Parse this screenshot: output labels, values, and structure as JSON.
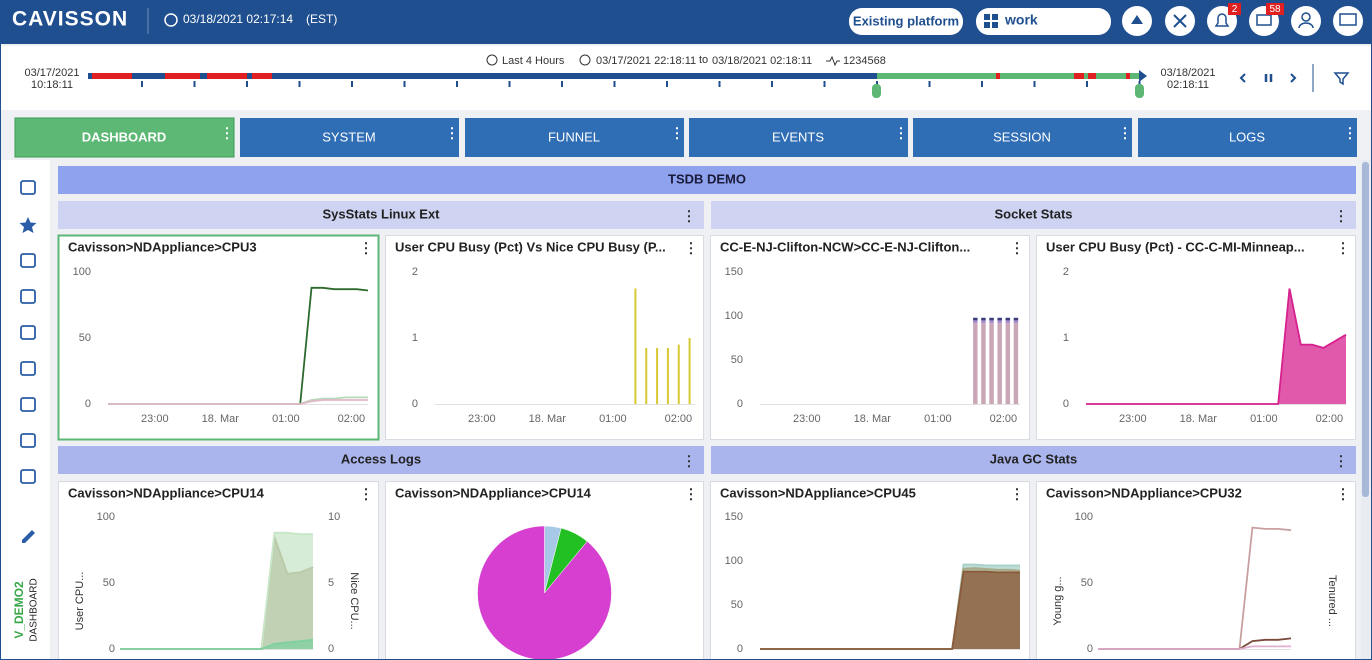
{
  "header": {
    "logo": "CAVISSON",
    "datetime": "03/18/2021 02:17:14",
    "timezone": "(EST)",
    "platform_button": "Existing platform",
    "workspace": "work",
    "alerts": 2,
    "messages": 58
  },
  "timeline": {
    "preset": "Last 4 Hours",
    "start": "03/17/2021 22:18:11",
    "to": "to",
    "end": "03/18/2021 02:18:11",
    "session": "1234568",
    "left_date": "03/17/2021",
    "left_time": "10:18:11",
    "right_date": "03/18/2021",
    "right_time": "02:18:11"
  },
  "tabs": [
    "DASHBOARD",
    "SYSTEM",
    "FUNNEL",
    "EVENTS",
    "SESSION",
    "LOGS"
  ],
  "sidebar": {
    "project": "V_DEMO2",
    "view": "DASHBOARD"
  },
  "dashboard": {
    "title": "TSDB DEMO",
    "groups": [
      {
        "title": "SysStats Linux Ext",
        "panels": [
          {
            "title": "Cavisson>NDAppliance>CPU3",
            "type": "line",
            "ylim": [
              0,
              100
            ],
            "yticks": [
              0,
              50,
              100
            ],
            "xticks": [
              "23:00",
              "18. Mar",
              "01:00",
              "02:00"
            ],
            "series": [
              {
                "color": "#2d6a2d",
                "values": [
                  0,
                  0,
                  0,
                  0,
                  0,
                  0,
                  0,
                  0,
                  0,
                  0,
                  0,
                  0,
                  0,
                  0,
                  0,
                  0,
                  0,
                  0,
                  88,
                  88,
                  87,
                  87,
                  87,
                  86
                ]
              },
              {
                "color": "#b9d8b9",
                "values": [
                  0,
                  0,
                  0,
                  0,
                  0,
                  0,
                  0,
                  0,
                  0,
                  0,
                  0,
                  0,
                  0,
                  0,
                  0,
                  0,
                  0,
                  0,
                  3,
                  4,
                  4,
                  5,
                  5,
                  5
                ]
              },
              {
                "color": "#e0b8c8",
                "values": [
                  0,
                  0,
                  0,
                  0,
                  0,
                  0,
                  0,
                  0,
                  0,
                  0,
                  0,
                  0,
                  0,
                  0,
                  0,
                  0,
                  0,
                  0,
                  2,
                  3,
                  3,
                  3,
                  3,
                  3
                ]
              }
            ]
          },
          {
            "title": "User CPU Busy (Pct) Vs Nice CPU Busy (P...",
            "type": "bar",
            "ylim": [
              0,
              2
            ],
            "yticks": [
              0,
              1,
              2
            ],
            "xticks": [
              "23:00",
              "18. Mar",
              "01:00",
              "02:00"
            ],
            "series": [
              {
                "color": "#d8c832",
                "values": [
                  null,
                  null,
                  null,
                  null,
                  null,
                  null,
                  null,
                  null,
                  null,
                  null,
                  null,
                  null,
                  null,
                  null,
                  null,
                  null,
                  null,
                  null,
                  1.75,
                  0.85,
                  0.85,
                  0.85,
                  0.9,
                  1.0
                ]
              }
            ]
          }
        ]
      },
      {
        "title": "Socket Stats",
        "panels": [
          {
            "title": "CC-E-NJ-Clifton-NCW>CC-E-NJ-Clifton...",
            "type": "bar",
            "stacked": true,
            "ylim": [
              0,
              150
            ],
            "yticks": [
              0,
              50,
              100,
              150
            ],
            "xticks": [
              "23:00",
              "18. Mar",
              "01:00",
              "02:00"
            ],
            "series": [
              {
                "color": "#c9a7b6",
                "values": [
                  null,
                  null,
                  null,
                  null,
                  null,
                  null,
                  null,
                  null,
                  null,
                  null,
                  null,
                  null,
                  null,
                  null,
                  null,
                  null,
                  null,
                  null,
                  null,
                  null,
                  null,
                  null,
                  null,
                  null,
                  null,
                  null,
                  92,
                  92,
                  92,
                  92,
                  92,
                  92
                ]
              },
              {
                "color": "#a98fcf",
                "values": [
                  null,
                  null,
                  null,
                  null,
                  null,
                  null,
                  null,
                  null,
                  null,
                  null,
                  null,
                  null,
                  null,
                  null,
                  null,
                  null,
                  null,
                  null,
                  null,
                  null,
                  null,
                  null,
                  null,
                  null,
                  null,
                  null,
                  3,
                  3,
                  3,
                  3,
                  3,
                  3
                ]
              },
              {
                "color": "#3c3c7a",
                "values": [
                  null,
                  null,
                  null,
                  null,
                  null,
                  null,
                  null,
                  null,
                  null,
                  null,
                  null,
                  null,
                  null,
                  null,
                  null,
                  null,
                  null,
                  null,
                  null,
                  null,
                  null,
                  null,
                  null,
                  null,
                  null,
                  null,
                  3,
                  3,
                  3,
                  3,
                  3,
                  3
                ]
              }
            ]
          },
          {
            "title": "User CPU Busy (Pct) - CC-C-MI-Minneap...",
            "type": "area",
            "ylim": [
              0,
              2
            ],
            "yticks": [
              0,
              1,
              2
            ],
            "xticks": [
              "23:00",
              "18. Mar",
              "01:00",
              "02:00"
            ],
            "series": [
              {
                "color": "#d6218e",
                "values": [
                  0,
                  0,
                  0,
                  0,
                  0,
                  0,
                  0,
                  0,
                  0,
                  0,
                  0,
                  0,
                  0,
                  0,
                  0,
                  0,
                  0,
                  0,
                  1.75,
                  0.9,
                  0.9,
                  0.85,
                  0.95,
                  1.05
                ]
              }
            ]
          }
        ]
      },
      {
        "title": "Access Logs",
        "panels": [
          {
            "title": "Cavisson>NDAppliance>CPU14",
            "type": "area",
            "ylim": [
              0,
              100
            ],
            "yticks": [
              0,
              50,
              100
            ],
            "y2lim": [
              0,
              10
            ],
            "y2ticks": [
              0,
              5,
              10
            ],
            "ylabel": "User CPU...",
            "y2label": "Nice CPU...",
            "series": [
              {
                "color": "#8b7345",
                "values": [
                  0,
                  0,
                  0,
                  0,
                  0,
                  0,
                  0,
                  0,
                  0,
                  0,
                  0,
                  0,
                  85,
                  57,
                  58,
                  62
                ]
              },
              {
                "color": "#c8e6c8",
                "axis": "y2",
                "values": [
                  0,
                  0,
                  0,
                  0,
                  0,
                  0,
                  0,
                  0,
                  0,
                  0,
                  0,
                  0,
                  8.8,
                  8.8,
                  8.7,
                  8.7
                ]
              },
              {
                "color": "#7fcf9f",
                "values": [
                  0,
                  0,
                  0,
                  0,
                  0,
                  0,
                  0,
                  0,
                  0,
                  0,
                  0,
                  0,
                  4,
                  5,
                  6,
                  7
                ]
              }
            ]
          },
          {
            "title": "Cavisson>NDAppliance>CPU14",
            "type": "pie",
            "values": [
              4,
              7,
              89
            ],
            "colors": [
              "#a8c8e8",
              "#22c022",
              "#d63fd0"
            ]
          }
        ]
      },
      {
        "title": "Java GC Stats",
        "panels": [
          {
            "title": "Cavisson>NDAppliance>CPU45",
            "type": "area",
            "ylim": [
              0,
              150
            ],
            "yticks": [
              0,
              50,
              100,
              150
            ],
            "series": [
              {
                "color": "#a8d0c8",
                "values": [
                  0,
                  0,
                  0,
                  0,
                  0,
                  0,
                  0,
                  0,
                  0,
                  0,
                  0,
                  0,
                  0,
                  0,
                  0,
                  0,
                  0,
                  0,
                  96,
                  96,
                  95,
                  95,
                  95,
                  95
                ]
              },
              {
                "color": "#a8ab88",
                "values": [
                  0,
                  0,
                  0,
                  0,
                  0,
                  0,
                  0,
                  0,
                  0,
                  0,
                  0,
                  0,
                  0,
                  0,
                  0,
                  0,
                  0,
                  0,
                  91,
                  92,
                  91,
                  90,
                  90,
                  89
                ]
              },
              {
                "color": "#8a5a3a",
                "values": [
                  0,
                  0,
                  0,
                  0,
                  0,
                  0,
                  0,
                  0,
                  0,
                  0,
                  0,
                  0,
                  0,
                  0,
                  0,
                  0,
                  0,
                  0,
                  88,
                  88,
                  88,
                  87,
                  87,
                  87
                ]
              }
            ]
          },
          {
            "title": "Cavisson>NDAppliance>CPU32",
            "type": "line",
            "ylim": [
              0,
              100
            ],
            "yticks": [
              0,
              50,
              100
            ],
            "ylabel": "Young g...",
            "y2label": "Tenured ...",
            "series": [
              {
                "color": "#c9a0a0",
                "values": [
                  0,
                  0,
                  0,
                  0,
                  0,
                  0,
                  0,
                  0,
                  0,
                  0,
                  0,
                  0,
                  92,
                  91,
                  91,
                  90
                ]
              },
              {
                "color": "#7a4a3a",
                "values": [
                  0,
                  0,
                  0,
                  0,
                  0,
                  0,
                  0,
                  0,
                  0,
                  0,
                  0,
                  0,
                  6,
                  7,
                  7,
                  8
                ]
              },
              {
                "color": "#e0b0d0",
                "values": [
                  0,
                  0,
                  0,
                  0,
                  0,
                  0,
                  0,
                  0,
                  0,
                  0,
                  0,
                  0,
                  2,
                  2,
                  2,
                  2
                ]
              }
            ]
          }
        ]
      }
    ]
  }
}
